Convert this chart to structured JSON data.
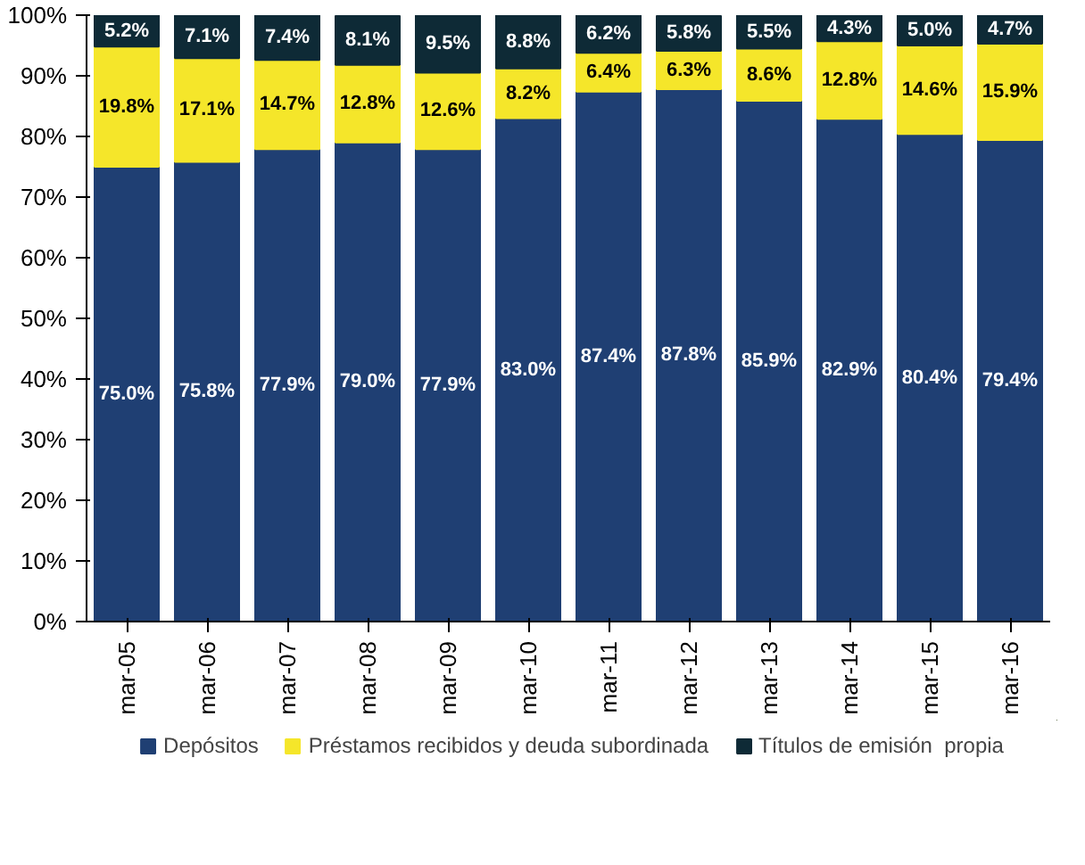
{
  "chart_data": {
    "type": "bar",
    "stacked": true,
    "categories": [
      "mar-05",
      "mar-06",
      "mar-07",
      "mar-08",
      "mar-09",
      "mar-10",
      "mar-11",
      "mar-12",
      "mar-13",
      "mar-14",
      "mar-15",
      "mar-16"
    ],
    "series": [
      {
        "name": "Depósitos",
        "color": "#1f3f73",
        "values": [
          75.0,
          75.8,
          77.9,
          79.0,
          77.9,
          83.0,
          87.4,
          87.8,
          85.9,
          82.9,
          80.4,
          79.4
        ],
        "value_labels": [
          "75.0%",
          "75.8%",
          "77.9%",
          "79.0%",
          "77.9%",
          "83.0%",
          "87.4%",
          "87.8%",
          "85.9%",
          "82.9%",
          "80.4%",
          "79.4%"
        ]
      },
      {
        "name": "Préstamos recibidos y deuda subordinada",
        "color": "#f5e62a",
        "values": [
          19.8,
          17.1,
          14.7,
          12.8,
          12.6,
          8.2,
          6.4,
          6.3,
          8.6,
          12.8,
          14.6,
          15.9
        ],
        "value_labels": [
          "19.8%",
          "17.1%",
          "14.7%",
          "12.8%",
          "12.6%",
          "8.2%",
          "6.4%",
          "6.3%",
          "8.6%",
          "12.8%",
          "14.6%",
          "15.9%"
        ]
      },
      {
        "name": "Títulos de emisión  propia",
        "color": "#0e2a36",
        "values": [
          5.2,
          7.1,
          7.4,
          8.1,
          9.5,
          8.8,
          6.2,
          5.8,
          5.5,
          4.3,
          5.0,
          4.7
        ],
        "value_labels": [
          "5.2%",
          "7.1%",
          "7.4%",
          "8.1%",
          "9.5%",
          "8.8%",
          "6.2%",
          "5.8%",
          "5.5%",
          "4.3%",
          "5.0%",
          "4.7%"
        ]
      }
    ],
    "ylim": [
      0,
      100
    ],
    "yticks": [
      {
        "value": 0,
        "label": "0%"
      },
      {
        "value": 10,
        "label": "10%"
      },
      {
        "value": 20,
        "label": "20%"
      },
      {
        "value": 30,
        "label": "30%"
      },
      {
        "value": 40,
        "label": "40%"
      },
      {
        "value": 50,
        "label": "50%"
      },
      {
        "value": 60,
        "label": "60%"
      },
      {
        "value": 70,
        "label": "70%"
      },
      {
        "value": 80,
        "label": "80%"
      },
      {
        "value": 90,
        "label": "90%"
      },
      {
        "value": 100,
        "label": "100%"
      }
    ],
    "grid": false,
    "legend": "bottom"
  }
}
